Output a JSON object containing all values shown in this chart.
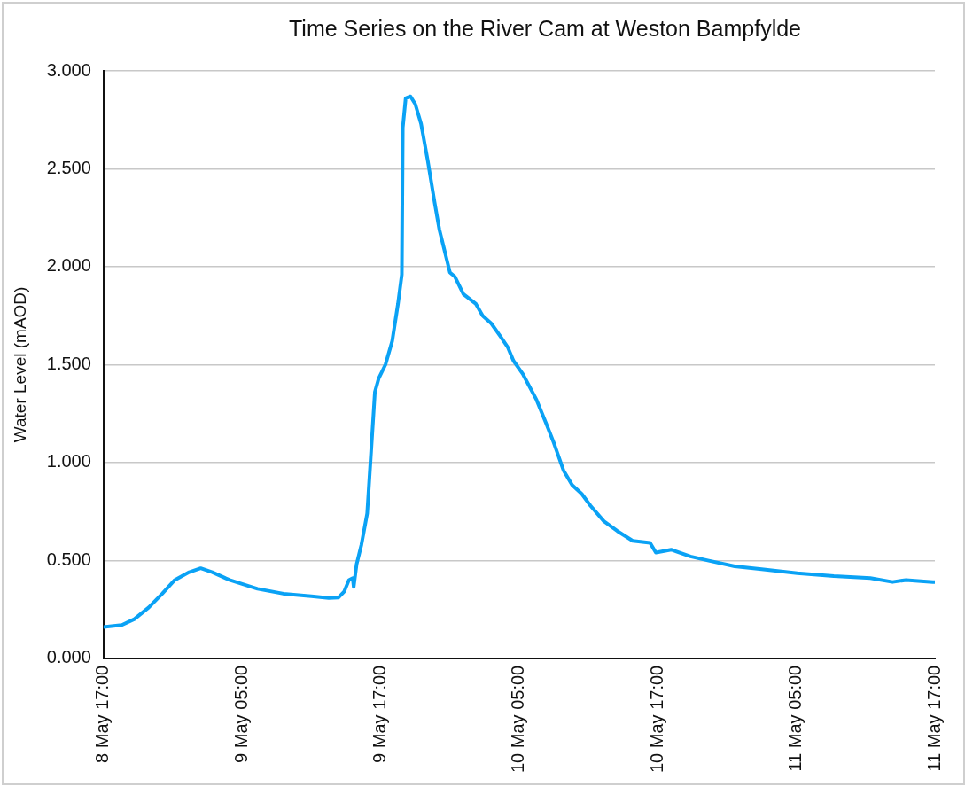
{
  "chart_data": {
    "type": "line",
    "title": "Time Series on the River Cam at Weston Bampfylde",
    "ylabel": "Water Level (mAOD)",
    "x": [
      "--05-08T17:00",
      "--05-08T18:35",
      "--05-08T19:40",
      "--05-08T20:55",
      "--05-08T22:05",
      "--05-08T23:10",
      "--05-09T00:25",
      "--05-09T01:25",
      "--05-09T02:25",
      "--05-09T03:55",
      "--05-09T06:20",
      "--05-09T08:35",
      "--05-09T11:00",
      "--05-09T12:30",
      "--05-09T13:20",
      "--05-09T13:50",
      "--05-09T14:15",
      "--05-09T14:35",
      "--05-09T14:40",
      "--05-09T14:55",
      "--05-09T15:20",
      "--05-09T15:50",
      "--05-09T16:10",
      "--05-09T16:30",
      "--05-09T16:50",
      "--05-09T17:25",
      "--05-09T18:00",
      "--05-09T18:30",
      "--05-09T18:50",
      "--05-09T18:55",
      "--05-09T19:10",
      "--05-09T19:35",
      "--05-09T20:00",
      "--05-09T20:30",
      "--05-09T21:05",
      "--05-09T21:40",
      "--05-09T22:05",
      "--05-09T22:30",
      "--05-09T23:00",
      "--05-09T23:25",
      "--05-10T00:10",
      "--05-10T01:15",
      "--05-10T01:50",
      "--05-10T02:35",
      "--05-10T03:25",
      "--05-10T04:00",
      "--05-10T04:30",
      "--05-10T05:20",
      "--05-10T06:30",
      "--05-10T07:20",
      "--05-10T08:00",
      "--05-10T08:50",
      "--05-10T09:35",
      "--05-10T10:25",
      "--05-10T11:10",
      "--05-10T12:20",
      "--05-10T13:30",
      "--05-10T14:50",
      "--05-10T16:20",
      "--05-10T16:50",
      "--05-10T18:10",
      "--05-10T19:50",
      "--05-10T21:20",
      "--05-10T23:40",
      "--05-11T02:00",
      "--05-11T05:05",
      "--05-11T08:15",
      "--05-11T11:25",
      "--05-11T13:20",
      "--05-11T14:30",
      "--05-11T16:50",
      "--05-11T17:00"
    ],
    "series": [
      {
        "color": "#0aa2f5",
        "values": [
          0.16,
          0.17,
          0.2,
          0.26,
          0.33,
          0.4,
          0.44,
          0.46,
          0.44,
          0.4,
          0.355,
          0.33,
          0.317,
          0.308,
          0.31,
          0.34,
          0.4,
          0.41,
          0.365,
          0.48,
          0.58,
          0.74,
          1.05,
          1.36,
          1.43,
          1.5,
          1.62,
          1.81,
          1.96,
          2.71,
          2.86,
          2.87,
          2.83,
          2.73,
          2.54,
          2.33,
          2.19,
          2.09,
          1.97,
          1.95,
          1.86,
          1.81,
          1.75,
          1.71,
          1.64,
          1.59,
          1.52,
          1.45,
          1.32,
          1.2,
          1.1,
          0.96,
          0.885,
          0.84,
          0.78,
          0.7,
          0.65,
          0.6,
          0.59,
          0.54,
          0.555,
          0.52,
          0.5,
          0.47,
          0.455,
          0.435,
          0.42,
          0.41,
          0.39,
          0.4,
          0.39,
          0.39
        ]
      }
    ],
    "xlim": [
      "--05-08T17:00",
      "--05-11T17:00"
    ],
    "xticks": [
      {
        "value": "--05-08T17:00",
        "label": "8 May 17:00"
      },
      {
        "value": "--05-09T05:00",
        "label": "9 May 05:00"
      },
      {
        "value": "--05-09T17:00",
        "label": "9 May 17:00"
      },
      {
        "value": "--05-10T05:00",
        "label": "10 May 05:00"
      },
      {
        "value": "--05-10T17:00",
        "label": "10 May 17:00"
      },
      {
        "value": "--05-11T05:00",
        "label": "11 May 05:00"
      },
      {
        "value": "--05-11T17:00",
        "label": "11 May 17:00"
      }
    ],
    "ylim": [
      0,
      3
    ],
    "yticks": [
      {
        "value": 0,
        "label": "0.000"
      },
      {
        "value": 0.5,
        "label": "0.500"
      },
      {
        "value": 1,
        "label": "1.000"
      },
      {
        "value": 1.5,
        "label": "1.500"
      },
      {
        "value": 2,
        "label": "2.000"
      },
      {
        "value": 2.5,
        "label": "2.500"
      },
      {
        "value": 3,
        "label": "3.000"
      }
    ],
    "grid": "y",
    "legend": false,
    "marker": "none",
    "line_style": "solid"
  }
}
